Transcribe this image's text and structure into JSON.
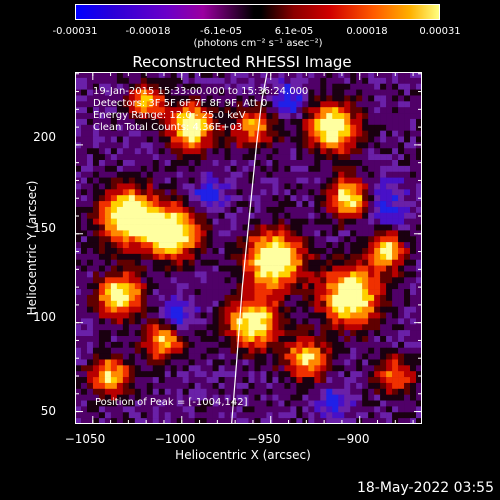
{
  "colorbar": {
    "ticks": [
      "-0.00031",
      "-0.00018",
      "-6.1e-05",
      "6.1e-05",
      "0.00018",
      "0.00031"
    ],
    "tick_values": [
      -0.00031,
      -0.00018,
      -6.1e-05,
      6.1e-05,
      0.00018,
      0.00031
    ],
    "units": "(photons cm⁻² s⁻¹ asec⁻²)",
    "colors": [
      "#0000ff",
      "#6a00c8",
      "#000000",
      "#d00000",
      "#ff5a00",
      "#ffff80"
    ]
  },
  "chart_data": {
    "type": "heatmap",
    "title": "Reconstructed RHESSI Image",
    "xlabel": "Heliocentric X (arcsec)",
    "ylabel": "Heliocentric Y (arcsec)",
    "xlim": [
      -1060,
      -865
    ],
    "ylim": [
      43,
      241
    ],
    "x_ticks": [
      -1050,
      -1000,
      -950,
      -900
    ],
    "y_ticks": [
      50,
      100,
      150,
      200
    ],
    "x_tick_labels": [
      "−1050",
      "−1000",
      "−950",
      "−900"
    ],
    "y_tick_labels": [
      "50",
      "100",
      "150",
      "200"
    ],
    "value_range": [
      -0.00031,
      0.00031
    ],
    "grid": false,
    "limb_curve": {
      "x": [
        -972,
        -969,
        -966,
        -962,
        -958,
        -955,
        -952
      ],
      "y": [
        43,
        80,
        120,
        160,
        200,
        225,
        241
      ]
    },
    "peak": {
      "x": -1004,
      "y": 142
    },
    "annotations": {
      "time_range": "19-Jan-2015 15:33:00.000 to 15:36:24.000",
      "detectors": "Detectors: 3F 5F 6F 7F 8F 9F, Att 0",
      "energy": "Energy Range: 12.0 - 25.0 keV",
      "method": "Clean    Total Counts: 4.36E+03",
      "peak_position": "Position of Peak = [-1004,142]"
    }
  },
  "footer": {
    "date": "18-May-2022 03:55"
  }
}
